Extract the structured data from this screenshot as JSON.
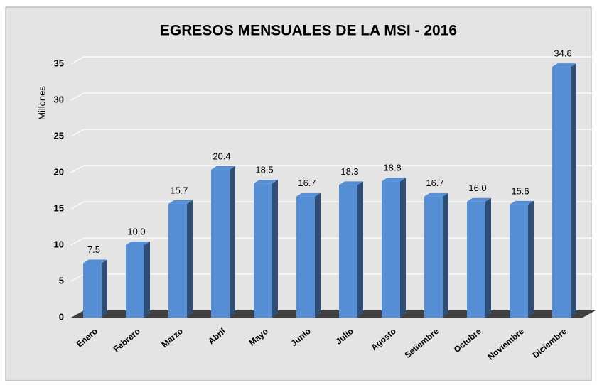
{
  "chart_data": {
    "type": "bar3d",
    "title": "EGRESOS MENSUALES DE LA MSI - 2016",
    "y_label": "Millones",
    "categories": [
      "Enero",
      "Febrero",
      "Marzo",
      "Abril",
      "Mayo",
      "Junio",
      "Julio",
      "Agosto",
      "Setiembre",
      "Octubre",
      "Noviembre",
      "Diciembre"
    ],
    "values": [
      7.5,
      10.0,
      15.7,
      20.4,
      18.5,
      16.7,
      18.3,
      18.8,
      16.7,
      16.0,
      15.6,
      34.6
    ],
    "value_labels": [
      "7.5",
      "10.0",
      "15.7",
      "20.4",
      "18.5",
      "16.7",
      "18.3",
      "18.8",
      "16.7",
      "16.0",
      "15.6",
      "34.6"
    ],
    "color": "#558ed5",
    "ylim": [
      0,
      35
    ],
    "yticks": [
      0,
      5,
      10,
      15,
      20,
      25,
      30,
      35
    ],
    "grid": true
  }
}
